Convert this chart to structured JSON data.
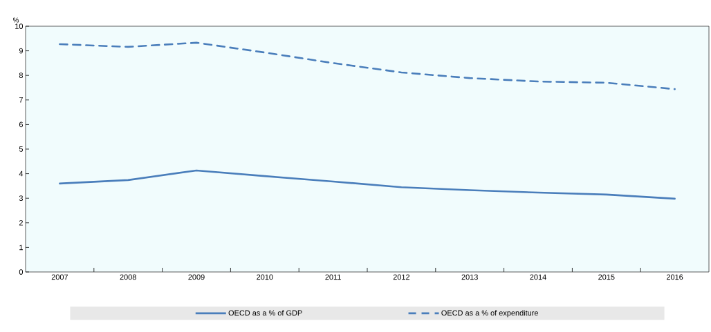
{
  "chart_data": {
    "type": "line",
    "ylabel": "%",
    "categories": [
      "2007",
      "2008",
      "2009",
      "2010",
      "2011",
      "2012",
      "2013",
      "2014",
      "2015",
      "2016"
    ],
    "series": [
      {
        "name": "OECD as a % of GDP",
        "color": "#4a7ebb",
        "line_style": "solid",
        "values": [
          3.6,
          3.74,
          4.13,
          3.9,
          3.68,
          3.45,
          3.33,
          3.23,
          3.15,
          2.98
        ]
      },
      {
        "name": "OECD as a % of expenditure",
        "color": "#4a7ebb",
        "line_style": "dashed",
        "values": [
          9.27,
          9.16,
          9.33,
          8.93,
          8.5,
          8.12,
          7.89,
          7.75,
          7.7,
          7.44
        ]
      }
    ],
    "ylim": [
      0,
      10
    ],
    "yticks": [
      0,
      1,
      2,
      3,
      4,
      5,
      6,
      7,
      8,
      9,
      10
    ],
    "grid": false,
    "legend": "bottom",
    "marker": "none"
  }
}
